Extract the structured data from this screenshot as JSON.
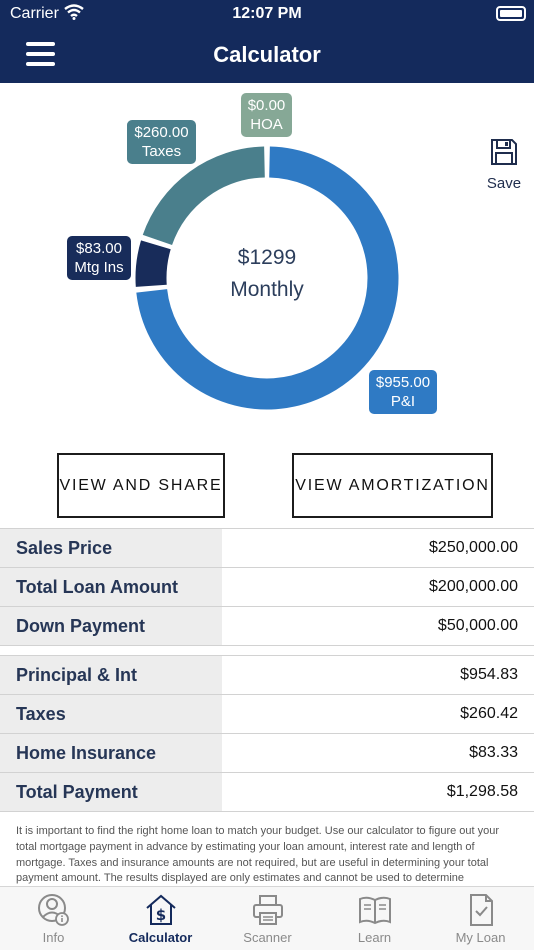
{
  "status_bar": {
    "carrier": "Carrier",
    "time": "12:07 PM"
  },
  "nav": {
    "title": "Calculator"
  },
  "save": {
    "label": "Save"
  },
  "chart_data": {
    "type": "pie",
    "center_amount": "$1299",
    "center_label": "Monthly",
    "slices": [
      {
        "label": "P&I",
        "display": "$955.00",
        "value": 955,
        "color": "#2f7ac4"
      },
      {
        "label": "Mtg Ins",
        "display": "$83.00",
        "value": 83,
        "color": "#182c5a"
      },
      {
        "label": "Taxes",
        "display": "$260.00",
        "value": 260,
        "color": "#4a7f8c"
      },
      {
        "label": "HOA",
        "display": "$0.00",
        "value": 0,
        "color": "#86a896"
      }
    ]
  },
  "buttons": {
    "view_share": "VIEW AND SHARE",
    "view_amortization": "VIEW AMORTIZATION"
  },
  "loan_table": [
    {
      "label": "Sales Price",
      "value": "$250,000.00"
    },
    {
      "label": "Total Loan Amount",
      "value": "$200,000.00"
    },
    {
      "label": "Down Payment",
      "value": "$50,000.00"
    }
  ],
  "payment_table": [
    {
      "label": "Principal & Int",
      "value": "$954.83"
    },
    {
      "label": "Taxes",
      "value": "$260.42"
    },
    {
      "label": "Home Insurance",
      "value": "$83.33"
    },
    {
      "label": "Total Payment",
      "value": "$1,298.58"
    }
  ],
  "disclaimer": "It is important to find the right home loan to match your budget. Use our calculator to figure out your total mortgage payment in advance by estimating your loan amount, interest rate and length of mortgage. Taxes and insurance amounts are not required, but are useful in determining your total payment amount. The results displayed are only estimates and cannot be used to determine",
  "tabs": [
    {
      "label": "Info",
      "icon": "person-info-icon",
      "active": false
    },
    {
      "label": "Calculator",
      "icon": "house-dollar-icon",
      "active": true
    },
    {
      "label": "Scanner",
      "icon": "printer-icon",
      "active": false
    },
    {
      "label": "Learn",
      "icon": "book-icon",
      "active": false
    },
    {
      "label": "My Loan",
      "icon": "document-check-icon",
      "active": false
    }
  ],
  "colors": {
    "nav": "#142a5c",
    "label_bg": "#ededed",
    "active_tab": "#142a5c",
    "inactive_tab": "#8a8a8a"
  }
}
